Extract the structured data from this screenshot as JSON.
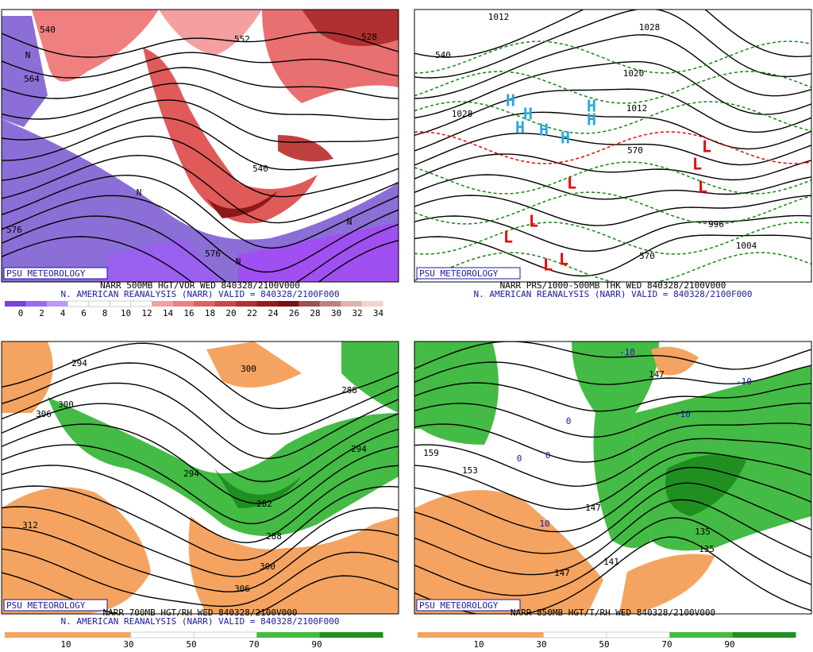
{
  "panels": [
    {
      "title": "NARR 500MB HGT/VOR WED 840328/2100V000",
      "subtitle": "N. AMERICAN REANALYSIS (NARR) VALID = 840328/2100F000",
      "credit": "PSU METEOROLOGY",
      "colorbar": [
        0,
        2,
        4,
        6,
        8,
        10,
        12,
        14,
        16,
        18,
        20,
        22,
        24,
        26,
        28,
        30,
        32,
        34
      ],
      "labels": [
        "564",
        "552",
        "528",
        "540",
        "576",
        "576",
        "540",
        "N",
        "N",
        "N",
        "N"
      ]
    },
    {
      "title": "NARR PRS/1000-500MB THK WED 840328/2100V000",
      "subtitle": "N. AMERICAN REANALYSIS (NARR) VALID = 840328/2100F000",
      "credit": "PSU METEOROLOGY",
      "labels": [
        "1012",
        "1028",
        "1020",
        "1012",
        "1028",
        "540",
        "996",
        "1004",
        "570",
        "570",
        "H",
        "H",
        "H",
        "H",
        "H",
        "H",
        "H",
        "L",
        "L",
        "L",
        "L",
        "L",
        "L",
        "L",
        "L"
      ]
    },
    {
      "title": "NARR 700MB HGT/RH WED 840328/2100V000",
      "subtitle": "N. AMERICAN REANALYSIS (NARR) VALID = 840328/2100F000",
      "credit": "PSU METEOROLOGY",
      "colorbar": [
        10,
        30,
        50,
        70,
        90
      ],
      "labels": [
        "294",
        "300",
        "306",
        "300",
        "288",
        "294",
        "294",
        "282",
        "288",
        "300",
        "306",
        "312"
      ]
    },
    {
      "title": "NARR 850MB HGT/T/RH WED 840328/2100V000",
      "credit": "PSU METEOROLOGY",
      "colorbar": [
        10,
        30,
        50,
        70,
        90
      ],
      "labels": [
        "-10",
        "-10",
        "-10",
        "147",
        "159",
        "153",
        "147",
        "10",
        "147",
        "141",
        "135",
        "135",
        "0",
        "0",
        "0"
      ]
    }
  ]
}
